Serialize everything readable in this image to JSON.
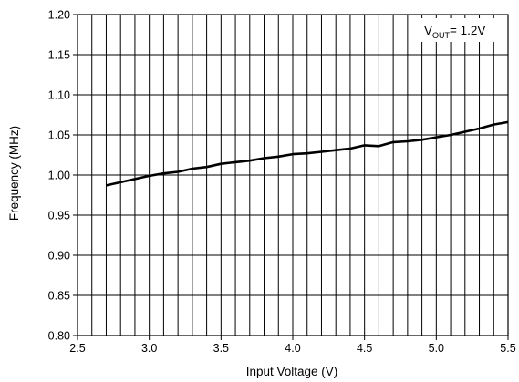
{
  "chart_data": {
    "type": "line",
    "title": "",
    "xlabel": "Input Voltage (V)",
    "ylabel": "Frequency (MHz)",
    "xlim": [
      2.5,
      5.5
    ],
    "ylim": [
      0.8,
      1.2
    ],
    "x_tick_labels": [
      "2.5",
      "3.0",
      "3.5",
      "4.0",
      "4.5",
      "5.0",
      "5.5"
    ],
    "y_tick_labels": [
      "0.80",
      "0.85",
      "0.90",
      "0.95",
      "1.00",
      "1.05",
      "1.10",
      "1.15",
      "1.20"
    ],
    "x_ticks": [
      2.5,
      3.0,
      3.5,
      4.0,
      4.5,
      5.0,
      5.5
    ],
    "y_ticks": [
      0.8,
      0.85,
      0.9,
      0.95,
      1.0,
      1.05,
      1.1,
      1.15,
      1.2
    ],
    "minor_x_step": 0.1,
    "grid": true,
    "annotation": {
      "main": "V",
      "sub": "OUT",
      "suffix": "= 1.2V",
      "placement": "top-right"
    },
    "series": [
      {
        "x": [
          2.7,
          2.8,
          2.9,
          3.0,
          3.1,
          3.2,
          3.3,
          3.4,
          3.5,
          3.6,
          3.7,
          3.8,
          3.9,
          4.0,
          4.1,
          4.2,
          4.3,
          4.4,
          4.5,
          4.6,
          4.7,
          4.8,
          4.9,
          5.0,
          5.1,
          5.2,
          5.3,
          5.4,
          5.5
        ],
        "y": [
          0.987,
          0.991,
          0.995,
          0.999,
          1.002,
          1.004,
          1.008,
          1.01,
          1.014,
          1.016,
          1.018,
          1.021,
          1.023,
          1.026,
          1.027,
          1.029,
          1.031,
          1.033,
          1.037,
          1.036,
          1.041,
          1.042,
          1.044,
          1.047,
          1.05,
          1.054,
          1.058,
          1.063,
          1.066
        ]
      }
    ]
  }
}
